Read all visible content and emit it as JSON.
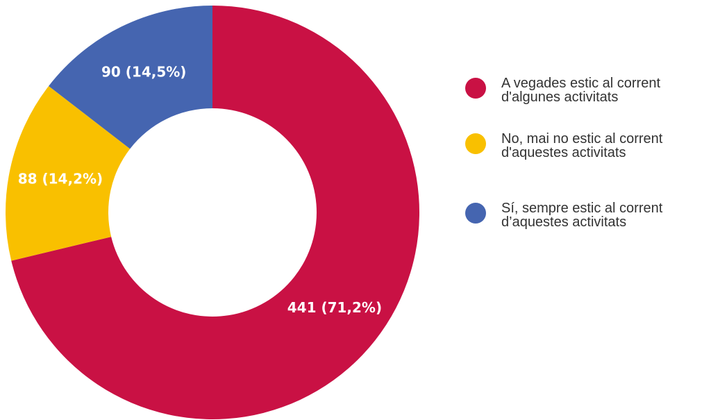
{
  "chart_data": {
    "type": "pie",
    "donut": true,
    "categories": [
      "A vegades estic al corrent d'algunes activitats",
      "No, mai no estic al corrent d'aquestes activitats",
      "Sí, sempre estic al corrent d’aquestes activitats"
    ],
    "values": [
      441,
      88,
      90
    ],
    "value_labels": [
      "441 (71,2%)",
      "88 (14,2%)",
      "90 (14,5%)"
    ],
    "colors": [
      "#c91144",
      "#f9c000",
      "#4565b0"
    ],
    "legend": "right"
  }
}
